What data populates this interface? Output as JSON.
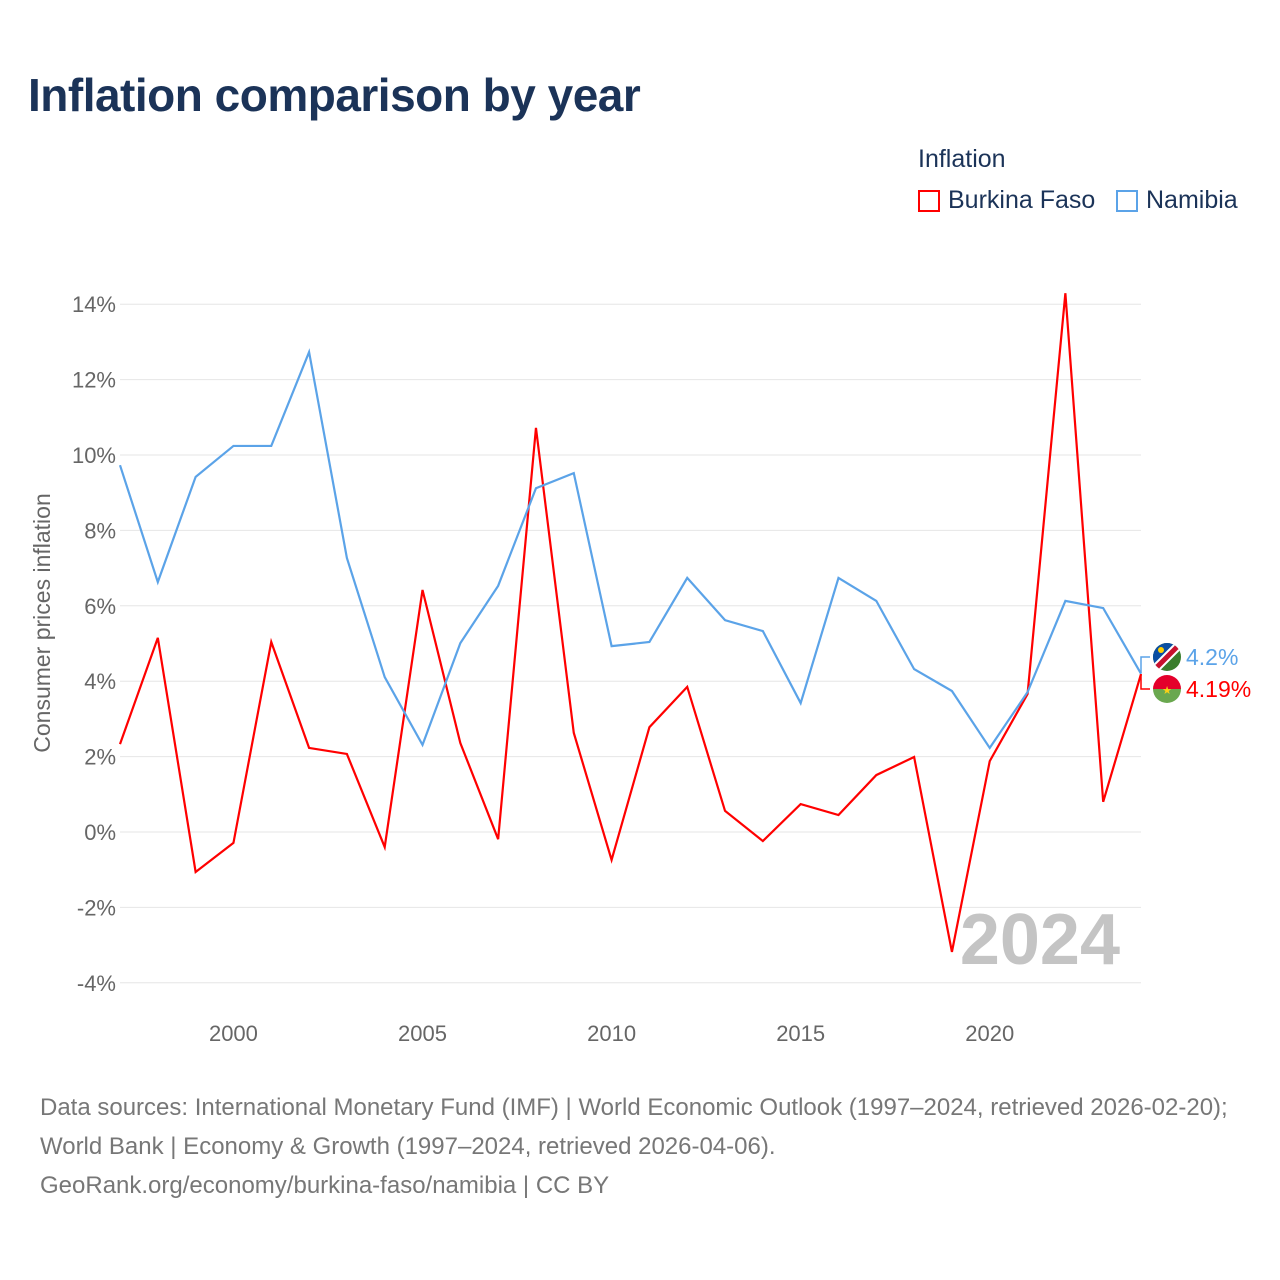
{
  "title": "Inflation comparison by year",
  "legend": {
    "title": "Inflation",
    "items": [
      "Burkina Faso",
      "Namibia"
    ]
  },
  "source": {
    "line1": "Data sources: International Monetary Fund (IMF) | World Economic Outlook (1997–2024, retrieved 2026-02-20); World Bank | Economy & Growth (1997–2024, retrieved 2026-04-06).",
    "line2": "GeoRank.org/economy/burkina-faso/namibia | CC BY"
  },
  "chart_data": {
    "type": "line",
    "title": "Inflation comparison by year",
    "ylabel": "Consumer prices inflation",
    "xlabel": "",
    "ylim": [
      -4.8,
      14.5
    ],
    "xlim": [
      1997,
      2024
    ],
    "yticks": [
      -4,
      -2,
      0,
      2,
      4,
      6,
      8,
      10,
      12,
      14
    ],
    "ytick_labels": [
      "-4%",
      "-2%",
      "0%",
      "2%",
      "4%",
      "6%",
      "8%",
      "10%",
      "12%",
      "14%"
    ],
    "xticks": [
      2000,
      2005,
      2010,
      2015,
      2020
    ],
    "xtick_labels": [
      "2000",
      "2005",
      "2010",
      "2015",
      "2020"
    ],
    "year_label": "2024",
    "x": [
      1997,
      1998,
      1999,
      2000,
      2001,
      2002,
      2003,
      2004,
      2005,
      2006,
      2007,
      2008,
      2009,
      2010,
      2011,
      2012,
      2013,
      2014,
      2015,
      2016,
      2017,
      2018,
      2019,
      2020,
      2021,
      2022,
      2023,
      2024
    ],
    "series": [
      {
        "name": "Burkina Faso",
        "color": "#ff0000",
        "end_label": "4.19%",
        "values": [
          2.33,
          5.15,
          -1.06,
          -0.29,
          5.04,
          2.23,
          2.07,
          -0.4,
          6.42,
          2.36,
          -0.19,
          10.72,
          2.63,
          -0.74,
          2.78,
          3.85,
          0.56,
          -0.24,
          0.74,
          0.45,
          1.51,
          1.99,
          -3.18,
          1.88,
          3.66,
          14.29,
          0.8,
          4.19
        ]
      },
      {
        "name": "Namibia",
        "color": "#5ba3e8",
        "end_label": "4.2%",
        "values": [
          9.73,
          6.63,
          9.42,
          10.24,
          10.24,
          12.73,
          7.27,
          4.11,
          2.31,
          5.01,
          6.53,
          9.12,
          9.52,
          4.93,
          5.04,
          6.74,
          5.62,
          5.33,
          3.42,
          6.74,
          6.13,
          4.32,
          3.74,
          2.23,
          3.71,
          6.13,
          5.94,
          4.2
        ]
      }
    ]
  }
}
